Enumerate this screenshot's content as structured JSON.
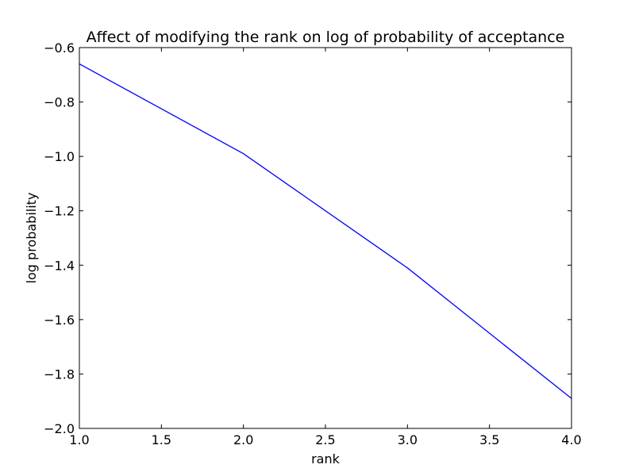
{
  "chart_data": {
    "type": "line",
    "title": "Affect of modifying the rank on log of probability of acceptance",
    "xlabel": "rank",
    "ylabel": "log probability",
    "xlim": [
      1.0,
      4.0
    ],
    "ylim": [
      -2.0,
      -0.6
    ],
    "xticks": [
      1.0,
      1.5,
      2.0,
      2.5,
      3.0,
      3.5,
      4.0
    ],
    "xtick_labels": [
      "1.0",
      "1.5",
      "2.0",
      "2.5",
      "3.0",
      "3.5",
      "4.0"
    ],
    "yticks": [
      -0.6,
      -0.8,
      -1.0,
      -1.2,
      -1.4,
      -1.6,
      -1.8,
      -2.0
    ],
    "ytick_labels": [
      "−0.6",
      "−0.8",
      "−1.0",
      "−1.2",
      "−1.4",
      "−1.6",
      "−1.8",
      "−2.0"
    ],
    "grid": false,
    "series": [
      {
        "color": "#0000ff",
        "x": [
          1,
          2,
          3,
          4
        ],
        "y": [
          -0.66,
          -0.99,
          -1.41,
          -1.89
        ]
      }
    ]
  }
}
